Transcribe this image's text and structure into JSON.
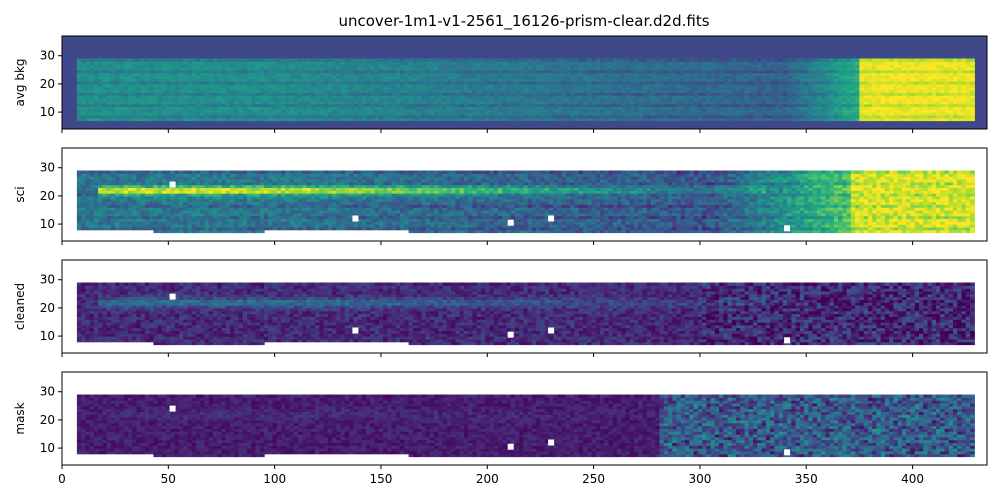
{
  "chart_data": {
    "type": "heatmap",
    "title": "uncover-1m1-v1-2561_16126-prism-clear.d2d.fits",
    "colormap": "viridis",
    "shared_x": true,
    "x_ticks": [
      0,
      50,
      100,
      150,
      200,
      250,
      300,
      350,
      400
    ],
    "xlim": [
      0,
      435
    ],
    "ylim": [
      4,
      37
    ],
    "y_ticks": [
      10,
      20,
      30
    ],
    "data_extent": {
      "x": [
        7,
        428
      ],
      "y": [
        7,
        28
      ]
    },
    "panels": [
      {
        "ylabel": "avg bkg",
        "background": "#3f4889",
        "trace_row": null,
        "trace_strength": 0,
        "masked_pixels": []
      },
      {
        "ylabel": "sci",
        "background": "#ffffff",
        "trace_row": 21.5,
        "trace_strength": 1.0,
        "masked_pixels": [
          [
            52,
            24
          ],
          [
            138,
            12
          ],
          [
            211,
            10.5
          ],
          [
            230,
            12
          ],
          [
            341,
            8.5
          ]
        ]
      },
      {
        "ylabel": "cleaned",
        "background": "#ffffff",
        "trace_row": 21.5,
        "trace_strength": 0.55,
        "masked_pixels": [
          [
            52,
            24
          ],
          [
            138,
            12
          ],
          [
            211,
            10.5
          ],
          [
            230,
            12
          ],
          [
            341,
            8.5
          ]
        ]
      },
      {
        "ylabel": "mask",
        "background": "#ffffff",
        "trace_row": 21.5,
        "trace_strength": 0.15,
        "masked_pixels": [
          [
            52,
            24
          ],
          [
            211,
            10.5
          ],
          [
            230,
            12
          ],
          [
            341,
            8.5
          ]
        ]
      }
    ]
  }
}
